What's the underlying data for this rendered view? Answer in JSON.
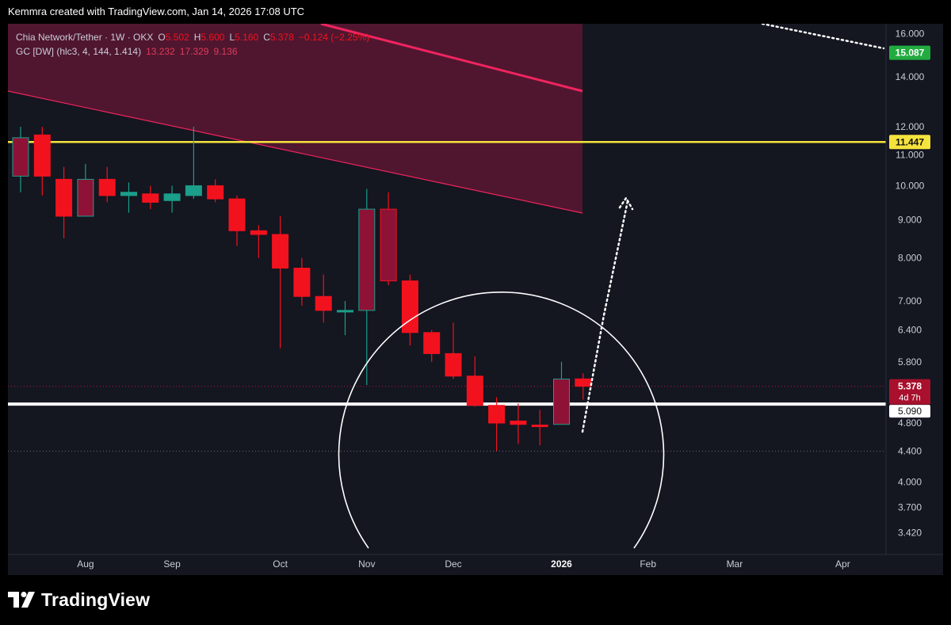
{
  "header": {
    "attribution": "Kemmra created with TradingView.com, Jan 14, 2026 17:08 UTC"
  },
  "legend": {
    "symbol": "Chia Network/Tether · 1W · OKX",
    "o_label": "O",
    "o_value": "5.502",
    "h_label": "H",
    "h_value": "5.600",
    "l_label": "L",
    "l_value": "5.160",
    "c_label": "C",
    "c_value": "5.378",
    "change": "−0.124 (−2.25%)",
    "indicator_name": "GC [DW] (hlc3, 4, 144, 1.414)",
    "indicator_values": [
      "13.232",
      "17.329",
      "9.136"
    ]
  },
  "footer": {
    "brand": "TradingView"
  },
  "colors": {
    "background": "#141620",
    "bull": "#1b9e8a",
    "bear": "#f2121e",
    "channel_fill": "#5a1633",
    "channel_line": "#f0245e",
    "support_line": "#ffffff",
    "resistance_line": "#f5e33d",
    "badge_green": "#22ab3f",
    "badge_red": "#a8102d",
    "axis_text": "#c9ccd6"
  },
  "chart_data": {
    "type": "candlestick",
    "timeframe": "1W",
    "y_scale": "log",
    "ylim": [
      3.3,
      16.3
    ],
    "y_ticks": [
      "16.000",
      "14.000",
      "12.000",
      "11.000",
      "10.000",
      "9.000",
      "8.000",
      "7.000",
      "6.400",
      "5.800",
      "4.800",
      "4.400",
      "4.000",
      "3.700",
      "3.420"
    ],
    "x_ticks": [
      "Aug",
      "Sep",
      "Oct",
      "Nov",
      "Dec",
      "2026",
      "Feb",
      "Mar",
      "Apr"
    ],
    "x_tick_weeks": [
      3.0,
      7.0,
      12.0,
      16.0,
      20.0,
      25.0,
      29.0,
      33.0,
      38.0
    ],
    "candles": [
      {
        "week": 0,
        "o": 10.3,
        "h": 12.0,
        "l": 9.8,
        "c": 11.6
      },
      {
        "week": 1,
        "o": 11.7,
        "h": 12.0,
        "l": 9.7,
        "c": 10.3
      },
      {
        "week": 2,
        "o": 10.2,
        "h": 10.6,
        "l": 8.5,
        "c": 9.1
      },
      {
        "week": 3,
        "o": 9.1,
        "h": 10.7,
        "l": 9.1,
        "c": 10.2
      },
      {
        "week": 4,
        "o": 10.2,
        "h": 10.6,
        "l": 9.5,
        "c": 9.7
      },
      {
        "week": 5,
        "o": 9.7,
        "h": 10.1,
        "l": 9.2,
        "c": 9.8
      },
      {
        "week": 6,
        "o": 9.75,
        "h": 10.0,
        "l": 9.3,
        "c": 9.5
      },
      {
        "week": 7,
        "o": 9.55,
        "h": 10.0,
        "l": 9.2,
        "c": 9.75
      },
      {
        "week": 8,
        "o": 9.7,
        "h": 12.0,
        "l": 9.6,
        "c": 10.0
      },
      {
        "week": 9,
        "o": 10.0,
        "h": 10.2,
        "l": 9.5,
        "c": 9.6
      },
      {
        "week": 10,
        "o": 9.6,
        "h": 9.7,
        "l": 8.3,
        "c": 8.7
      },
      {
        "week": 11,
        "o": 8.7,
        "h": 8.85,
        "l": 8.0,
        "c": 8.6
      },
      {
        "week": 12,
        "o": 8.6,
        "h": 9.1,
        "l": 6.05,
        "c": 7.75
      },
      {
        "week": 13,
        "o": 7.75,
        "h": 8.0,
        "l": 6.9,
        "c": 7.1
      },
      {
        "week": 14,
        "o": 7.1,
        "h": 7.6,
        "l": 6.55,
        "c": 6.8
      },
      {
        "week": 15,
        "o": 6.8,
        "h": 7.0,
        "l": 6.3,
        "c": 6.8
      },
      {
        "week": 16,
        "o": 6.8,
        "h": 9.9,
        "l": 5.4,
        "c": 9.3
      },
      {
        "week": 17,
        "o": 9.3,
        "h": 9.8,
        "l": 7.35,
        "c": 7.45
      },
      {
        "week": 18,
        "o": 7.45,
        "h": 7.6,
        "l": 6.1,
        "c": 6.35
      },
      {
        "week": 19,
        "o": 6.35,
        "h": 6.4,
        "l": 5.8,
        "c": 5.95
      },
      {
        "week": 20,
        "o": 5.95,
        "h": 6.55,
        "l": 5.5,
        "c": 5.55
      },
      {
        "week": 21,
        "o": 5.55,
        "h": 5.9,
        "l": 5.05,
        "c": 5.07
      },
      {
        "week": 22,
        "o": 5.07,
        "h": 5.2,
        "l": 4.4,
        "c": 4.8
      },
      {
        "week": 23,
        "o": 4.83,
        "h": 5.1,
        "l": 4.5,
        "c": 4.78
      },
      {
        "week": 24,
        "o": 4.77,
        "h": 5.0,
        "l": 4.48,
        "c": 4.75
      },
      {
        "week": 25,
        "o": 4.78,
        "h": 5.8,
        "l": 4.78,
        "c": 5.5
      },
      {
        "week": 26,
        "o": 5.502,
        "h": 5.6,
        "l": 5.16,
        "c": 5.378
      }
    ],
    "horizontal_lines": [
      {
        "value": 11.447,
        "label": "11.447",
        "color": "#f5e33d"
      },
      {
        "value": 5.09,
        "label": "5.090",
        "color": "#ffffff"
      }
    ],
    "price_labels": [
      {
        "value": 15.087,
        "label": "15.087"
      },
      {
        "value": 5.378,
        "label": "5.378",
        "countdown": "4d 7h"
      }
    ],
    "dotted_reference_level": 4.4
  }
}
